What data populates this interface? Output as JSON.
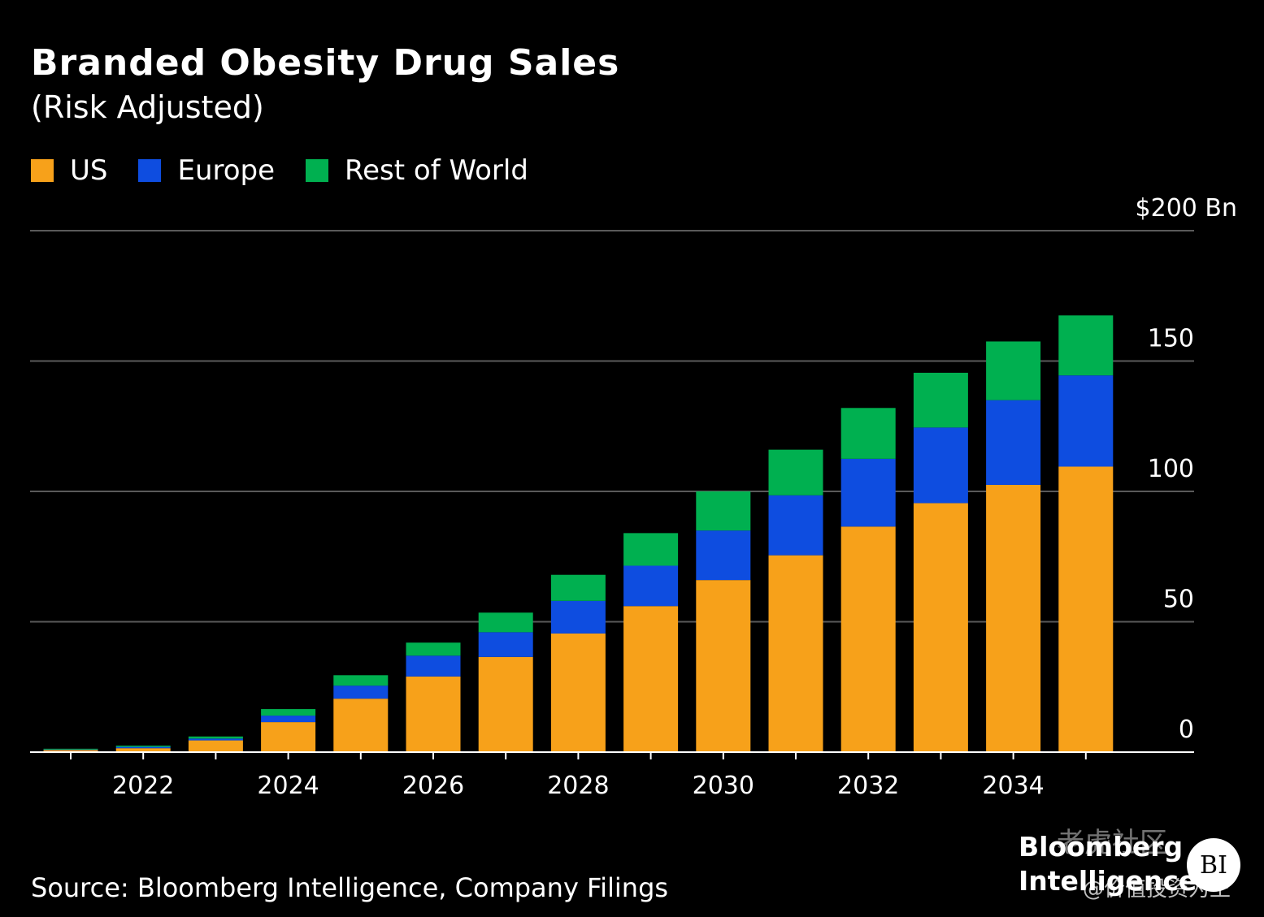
{
  "header": {
    "title": "Branded Obesity Drug Sales",
    "subtitle": "(Risk Adjusted)"
  },
  "legend": [
    {
      "label": "US",
      "color": "#f7a11a"
    },
    {
      "label": "Europe",
      "color": "#0e4de0"
    },
    {
      "label": "Rest of World",
      "color": "#00b050"
    }
  ],
  "footer": {
    "source": "Source: Bloomberg Intelligence, Company Filings"
  },
  "logo": {
    "line1": "Bloomberg",
    "line2": "Intelligence",
    "badge": "BI"
  },
  "watermark": {
    "line1": "老虎社区",
    "line2": "@价值投资为王"
  },
  "chart_data": {
    "type": "bar",
    "stacked": true,
    "categories": [
      "2021",
      "2022",
      "2023",
      "2024",
      "2025",
      "2026",
      "2027",
      "2028",
      "2029",
      "2030",
      "2031",
      "2032",
      "2033",
      "2034",
      "2035"
    ],
    "series": [
      {
        "name": "US",
        "color": "#f7a11a",
        "values": [
          0.8,
          1.5,
          4.5,
          11.5,
          20.5,
          29,
          36.5,
          45.5,
          56,
          66,
          75.5,
          86.5,
          95.5,
          102.5,
          109.5
        ]
      },
      {
        "name": "Europe",
        "color": "#0e4de0",
        "values": [
          0.2,
          0.5,
          0.7,
          2.5,
          5,
          8,
          9.5,
          12.5,
          15.5,
          19,
          23,
          26,
          29,
          32.5,
          35
        ]
      },
      {
        "name": "Rest of World",
        "color": "#00b050",
        "values": [
          0.3,
          0.5,
          0.8,
          2.5,
          4,
          5,
          7.5,
          10,
          12.5,
          15,
          17.5,
          19.5,
          21,
          22.5,
          23
        ]
      }
    ],
    "ylim": [
      0,
      200
    ],
    "y_ticks": [
      0,
      50,
      100,
      150,
      200
    ],
    "y_tick_labels": [
      "0",
      "50",
      "100",
      "150",
      "$200 Bn"
    ],
    "x_tick_labels": [
      "2022",
      "2024",
      "2026",
      "2028",
      "2030",
      "2032",
      "2034"
    ],
    "y_axis_side": "right",
    "grid": true,
    "legend_position": "top-left"
  }
}
